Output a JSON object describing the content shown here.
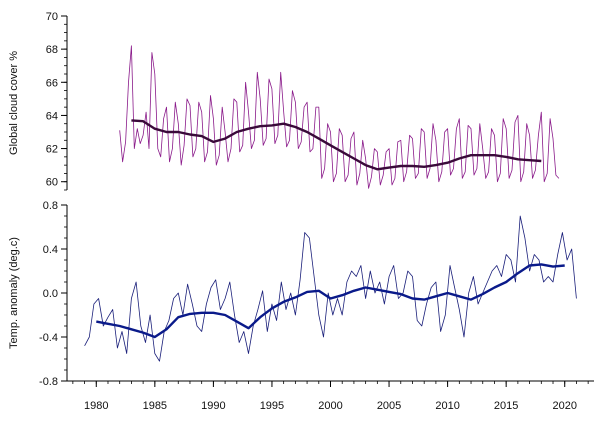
{
  "chart_data": [
    {
      "type": "line",
      "ylabel": "Global cloud cover %",
      "ylim": [
        59.5,
        70
      ],
      "yticks": [
        60,
        62,
        64,
        66,
        68,
        70
      ],
      "xlim": [
        1977.5,
        2022.5
      ],
      "colors": {
        "raw": "#8a1a8a",
        "smooth": "#3a0a3a"
      },
      "series": [
        {
          "style": "thin-raw",
          "x": [
            1982.0,
            1982.25,
            1982.5,
            1982.75,
            1983.0,
            1983.25,
            1983.5,
            1983.75,
            1984.0,
            1984.25,
            1984.5,
            1984.75,
            1985.0,
            1985.25,
            1985.5,
            1985.75,
            1986.0,
            1986.25,
            1986.5,
            1986.75,
            1987.0,
            1987.25,
            1987.5,
            1987.75,
            1988.0,
            1988.25,
            1988.5,
            1988.75,
            1989.0,
            1989.25,
            1989.5,
            1989.75,
            1990.0,
            1990.25,
            1990.5,
            1990.75,
            1991.0,
            1991.25,
            1991.5,
            1991.75,
            1992.0,
            1992.25,
            1992.5,
            1992.75,
            1993.0,
            1993.25,
            1993.5,
            1993.75,
            1994.0,
            1994.25,
            1994.5,
            1994.75,
            1995.0,
            1995.25,
            1995.5,
            1995.75,
            1996.0,
            1996.25,
            1996.5,
            1996.75,
            1997.0,
            1997.25,
            1997.5,
            1997.75,
            1998.0,
            1998.25,
            1998.5,
            1998.75,
            1999.0,
            1999.25,
            1999.5,
            1999.75,
            2000.0,
            2000.25,
            2000.5,
            2000.75,
            2001.0,
            2001.25,
            2001.5,
            2001.75,
            2002.0,
            2002.25,
            2002.5,
            2002.75,
            2003.0,
            2003.25,
            2003.5,
            2003.75,
            2004.0,
            2004.25,
            2004.5,
            2004.75,
            2005.0,
            2005.25,
            2005.5,
            2005.75,
            2006.0,
            2006.25,
            2006.5,
            2006.75,
            2007.0,
            2007.25,
            2007.5,
            2007.75,
            2008.0,
            2008.25,
            2008.5,
            2008.75,
            2009.0,
            2009.25,
            2009.5,
            2009.75,
            2010.0,
            2010.25,
            2010.5,
            2010.75,
            2011.0,
            2011.25,
            2011.5,
            2011.75,
            2012.0,
            2012.25,
            2012.5,
            2012.75,
            2013.0,
            2013.25,
            2013.5,
            2013.75,
            2014.0,
            2014.25,
            2014.5,
            2014.75,
            2015.0,
            2015.25,
            2015.5,
            2015.75,
            2016.0,
            2016.25,
            2016.5,
            2016.75,
            2017.0,
            2017.25,
            2017.5,
            2017.75,
            2018.0,
            2018.25,
            2018.5,
            2018.75,
            2019.0,
            2019.25,
            2019.5
          ],
          "values": [
            63.1,
            61.2,
            62.4,
            66.0,
            68.2,
            62.0,
            63.2,
            62.3,
            62.8,
            64.2,
            62.0,
            67.8,
            66.5,
            62.0,
            61.5,
            63.8,
            64.5,
            61.2,
            62.0,
            64.8,
            63.5,
            61.0,
            62.2,
            65.0,
            64.6,
            61.5,
            62.0,
            64.8,
            64.2,
            61.2,
            61.8,
            65.2,
            63.8,
            61.0,
            61.6,
            64.5,
            63.0,
            61.2,
            62.0,
            65.0,
            64.8,
            61.8,
            62.2,
            66.0,
            64.2,
            62.0,
            62.5,
            66.6,
            65.0,
            62.2,
            62.6,
            66.2,
            65.6,
            62.3,
            62.8,
            66.6,
            64.2,
            62.1,
            62.5,
            65.5,
            64.8,
            62.0,
            62.4,
            64.5,
            64.8,
            61.8,
            62.0,
            64.5,
            64.5,
            60.2,
            60.8,
            63.5,
            63.0,
            60.0,
            60.5,
            63.2,
            62.8,
            60.0,
            60.4,
            62.6,
            63.0,
            59.8,
            60.5,
            62.5,
            61.4,
            59.6,
            60.3,
            62.0,
            61.8,
            59.8,
            60.4,
            61.8,
            62.0,
            59.8,
            60.2,
            62.4,
            62.5,
            60.0,
            60.6,
            62.8,
            62.6,
            60.2,
            60.5,
            63.2,
            63.0,
            60.2,
            60.8,
            63.5,
            62.5,
            60.0,
            60.6,
            63.0,
            63.2,
            60.4,
            60.8,
            63.2,
            63.8,
            60.2,
            60.6,
            63.4,
            63.2,
            60.4,
            60.8,
            63.5,
            62.0,
            60.2,
            60.6,
            63.2,
            62.8,
            60.0,
            60.5,
            63.8,
            63.2,
            60.2,
            60.7,
            63.6,
            64.0,
            60.0,
            60.6,
            63.5,
            62.8,
            60.2,
            60.7,
            62.8,
            64.2,
            60.0,
            60.5,
            63.8,
            62.6,
            60.4,
            60.2
          ]
        },
        {
          "style": "thick-smooth",
          "x": [
            1983,
            1984,
            1985,
            1986,
            1987,
            1988,
            1989,
            1990,
            1991,
            1992,
            1993,
            1994,
            1995,
            1996,
            1997,
            1998,
            1999,
            2000,
            2001,
            2002,
            2003,
            2004,
            2005,
            2006,
            2007,
            2008,
            2009,
            2010,
            2011,
            2012,
            2013,
            2014,
            2015,
            2016,
            2017,
            2018
          ],
          "values": [
            63.7,
            63.65,
            63.2,
            63.0,
            63.0,
            62.85,
            62.75,
            62.4,
            62.6,
            63.0,
            63.2,
            63.35,
            63.4,
            63.5,
            63.3,
            63.0,
            62.6,
            62.2,
            61.8,
            61.4,
            61.0,
            60.75,
            60.85,
            60.95,
            60.95,
            60.9,
            61.0,
            61.15,
            61.4,
            61.6,
            61.6,
            61.6,
            61.5,
            61.35,
            61.3,
            61.25
          ]
        }
      ]
    },
    {
      "type": "line",
      "ylabel": "Temp. anomaly (deg.c)",
      "ylim": [
        -0.8,
        0.8
      ],
      "yticks": [
        -0.8,
        -0.4,
        0.0,
        0.4,
        0.8
      ],
      "yticklabels": [
        "-0.8",
        "-0.4",
        "0.0",
        "0.4",
        "0.8"
      ],
      "xlim": [
        1977.5,
        2022.5
      ],
      "xticks": [
        1980,
        1985,
        1990,
        1995,
        2000,
        2005,
        2010,
        2015,
        2020
      ],
      "xticklabels": [
        "1980",
        "1985",
        "1990",
        "1995",
        "2000",
        "2005",
        "2010",
        "2015",
        "2020"
      ],
      "colors": {
        "raw": "#1a1f7a",
        "smooth": "#0a1a8a"
      },
      "series": [
        {
          "style": "thin-raw",
          "x": [
            1979.0,
            1979.4,
            1979.8,
            1980.2,
            1980.6,
            1981.0,
            1981.4,
            1981.8,
            1982.2,
            1982.6,
            1983.0,
            1983.4,
            1983.8,
            1984.2,
            1984.6,
            1985.0,
            1985.4,
            1985.8,
            1986.2,
            1986.6,
            1987.0,
            1987.4,
            1987.8,
            1988.2,
            1988.6,
            1989.0,
            1989.4,
            1989.8,
            1990.2,
            1990.6,
            1991.0,
            1991.4,
            1991.8,
            1992.2,
            1992.6,
            1993.0,
            1993.4,
            1993.8,
            1994.2,
            1994.6,
            1995.0,
            1995.4,
            1995.8,
            1996.2,
            1996.6,
            1997.0,
            1997.4,
            1997.8,
            1998.2,
            1998.6,
            1999.0,
            1999.4,
            1999.8,
            2000.2,
            2000.6,
            2001.0,
            2001.4,
            2001.8,
            2002.2,
            2002.6,
            2003.0,
            2003.4,
            2003.8,
            2004.2,
            2004.6,
            2005.0,
            2005.4,
            2005.8,
            2006.2,
            2006.6,
            2007.0,
            2007.4,
            2007.8,
            2008.2,
            2008.6,
            2009.0,
            2009.4,
            2009.8,
            2010.2,
            2010.6,
            2011.0,
            2011.4,
            2011.8,
            2012.2,
            2012.6,
            2013.0,
            2013.4,
            2013.8,
            2014.2,
            2014.6,
            2015.0,
            2015.4,
            2015.8,
            2016.2,
            2016.6,
            2017.0,
            2017.4,
            2017.8,
            2018.2,
            2018.6,
            2019.0,
            2019.4,
            2019.8,
            2020.2,
            2020.6,
            2021.0
          ],
          "values": [
            -0.48,
            -0.4,
            -0.1,
            -0.05,
            -0.3,
            -0.22,
            -0.15,
            -0.5,
            -0.35,
            -0.55,
            -0.05,
            0.1,
            -0.3,
            -0.45,
            -0.2,
            -0.55,
            -0.62,
            -0.35,
            -0.25,
            -0.05,
            0.0,
            -0.2,
            0.08,
            -0.1,
            -0.3,
            -0.35,
            -0.1,
            0.05,
            0.12,
            -0.15,
            -0.05,
            0.1,
            -0.2,
            -0.45,
            -0.35,
            -0.55,
            -0.3,
            -0.15,
            0.02,
            -0.35,
            -0.1,
            -0.25,
            0.1,
            -0.15,
            0.0,
            -0.2,
            0.12,
            0.55,
            0.5,
            0.15,
            -0.2,
            -0.4,
            0.0,
            -0.2,
            -0.05,
            -0.2,
            0.1,
            0.2,
            0.15,
            0.25,
            -0.05,
            0.2,
            0.0,
            0.1,
            -0.1,
            0.15,
            0.25,
            -0.05,
            0.0,
            0.2,
            0.15,
            -0.25,
            -0.3,
            -0.1,
            0.05,
            0.1,
            -0.35,
            -0.2,
            0.25,
            0.05,
            -0.15,
            -0.4,
            0.0,
            0.15,
            -0.1,
            0.0,
            0.1,
            0.2,
            0.25,
            0.15,
            0.35,
            0.3,
            0.1,
            0.7,
            0.5,
            0.2,
            0.35,
            0.3,
            0.1,
            0.15,
            0.1,
            0.35,
            0.55,
            0.3,
            0.4,
            -0.05
          ]
        },
        {
          "style": "thick-smooth",
          "x": [
            1980,
            1981,
            1982,
            1983,
            1984,
            1985,
            1986,
            1987,
            1988,
            1989,
            1990,
            1991,
            1992,
            1993,
            1994,
            1995,
            1996,
            1997,
            1998,
            1999,
            2000,
            2001,
            2002,
            2003,
            2004,
            2005,
            2006,
            2007,
            2008,
            2009,
            2010,
            2011,
            2012,
            2013,
            2014,
            2015,
            2016,
            2017,
            2018,
            2019,
            2020
          ],
          "values": [
            -0.26,
            -0.28,
            -0.3,
            -0.33,
            -0.36,
            -0.4,
            -0.33,
            -0.22,
            -0.19,
            -0.18,
            -0.18,
            -0.2,
            -0.26,
            -0.32,
            -0.22,
            -0.14,
            -0.08,
            -0.04,
            0.01,
            0.02,
            -0.05,
            -0.02,
            0.02,
            0.05,
            0.03,
            0.01,
            -0.01,
            -0.05,
            -0.06,
            -0.03,
            0.0,
            -0.03,
            -0.06,
            -0.01,
            0.05,
            0.1,
            0.18,
            0.25,
            0.26,
            0.24,
            0.25
          ]
        }
      ]
    }
  ]
}
